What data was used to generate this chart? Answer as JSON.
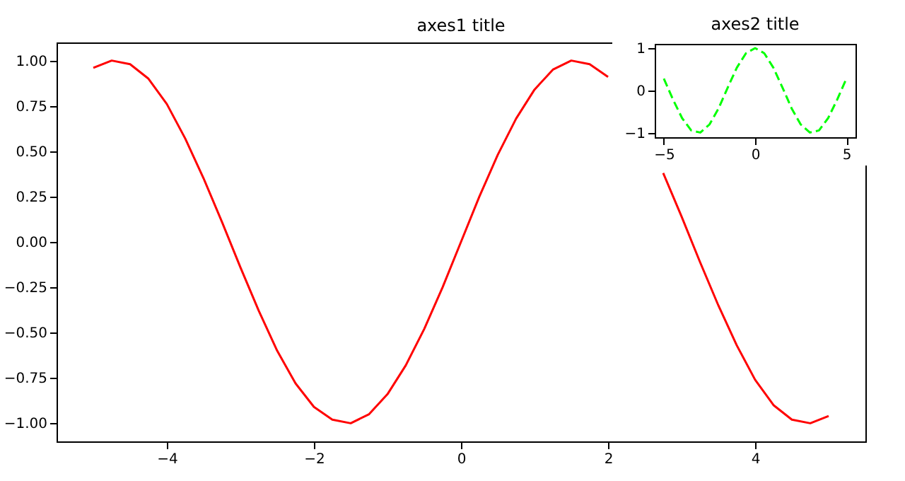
{
  "chart_data": [
    {
      "type": "line",
      "title": "axes1 title",
      "x": [
        -5,
        -4.75,
        -4.5,
        -4.25,
        -4,
        -3.75,
        -3.5,
        -3.25,
        -3,
        -2.75,
        -2.5,
        -2.25,
        -2,
        -1.75,
        -1.5,
        -1.25,
        -1,
        -0.75,
        -0.5,
        -0.25,
        0,
        0.25,
        0.5,
        0.75,
        1,
        1.25,
        1.5,
        1.75,
        2,
        2.25,
        2.5,
        2.75,
        3,
        3.25,
        3.5,
        3.75,
        4,
        4.25,
        4.5,
        4.75,
        5
      ],
      "series": [
        {
          "color": "#ff0000",
          "values": [
            0.96,
            1.0,
            0.98,
            0.9,
            0.76,
            0.57,
            0.35,
            0.11,
            -0.14,
            -0.38,
            -0.6,
            -0.78,
            -0.91,
            -0.98,
            -1.0,
            -0.95,
            -0.84,
            -0.68,
            -0.48,
            -0.25,
            0,
            0.25,
            0.48,
            0.68,
            0.84,
            0.95,
            1.0,
            0.98,
            0.91,
            null,
            null,
            0.38,
            0.14,
            -0.11,
            -0.35,
            -0.57,
            -0.76,
            -0.9,
            -0.98,
            -1.0,
            -0.96
          ]
        }
      ],
      "xlim": [
        -5.5,
        5.5
      ],
      "ylim": [
        -1.1,
        1.1
      ],
      "xticks": [
        {
          "value": -4,
          "label": "−4"
        },
        {
          "value": -2,
          "label": "−2"
        },
        0,
        2,
        4
      ],
      "yticks": [
        {
          "value": -1,
          "label": "−1.00"
        },
        {
          "value": -0.75,
          "label": "−0.75"
        },
        {
          "value": -0.5,
          "label": "−0.50"
        },
        {
          "value": -0.25,
          "label": "−0.25"
        },
        {
          "value": 0,
          "label": "0.00"
        },
        {
          "value": 0.25,
          "label": "0.25"
        },
        {
          "value": 0.5,
          "label": "0.50"
        },
        {
          "value": 0.75,
          "label": "0.75"
        },
        {
          "value": 1,
          "label": "1.00"
        }
      ],
      "grid": false,
      "line_style": "solid",
      "marker": "none"
    },
    {
      "type": "line",
      "title": "axes2 title",
      "x": [
        -5,
        -4.5,
        -4,
        -3.5,
        -3,
        -2.5,
        -2,
        -1.5,
        -1,
        -0.5,
        0,
        0.5,
        1,
        1.5,
        2,
        2.5,
        3,
        3.5,
        4,
        4.5,
        5
      ],
      "series": [
        {
          "color": "#00ff00",
          "values": [
            0.28,
            -0.21,
            -0.65,
            -0.94,
            -0.99,
            -0.8,
            -0.42,
            0.07,
            0.54,
            0.88,
            1.0,
            0.88,
            0.54,
            0.07,
            -0.42,
            -0.8,
            -0.99,
            -0.94,
            -0.65,
            -0.21,
            0.28
          ]
        }
      ],
      "xlim": [
        -5.5,
        5.5
      ],
      "ylim": [
        -1.1,
        1.1
      ],
      "xticks": [
        {
          "value": -5,
          "label": "−5"
        },
        0,
        5
      ],
      "yticks": [
        {
          "value": -1,
          "label": "−1"
        },
        0,
        1
      ],
      "grid": false,
      "line_style": "dashed",
      "marker": "none"
    }
  ]
}
